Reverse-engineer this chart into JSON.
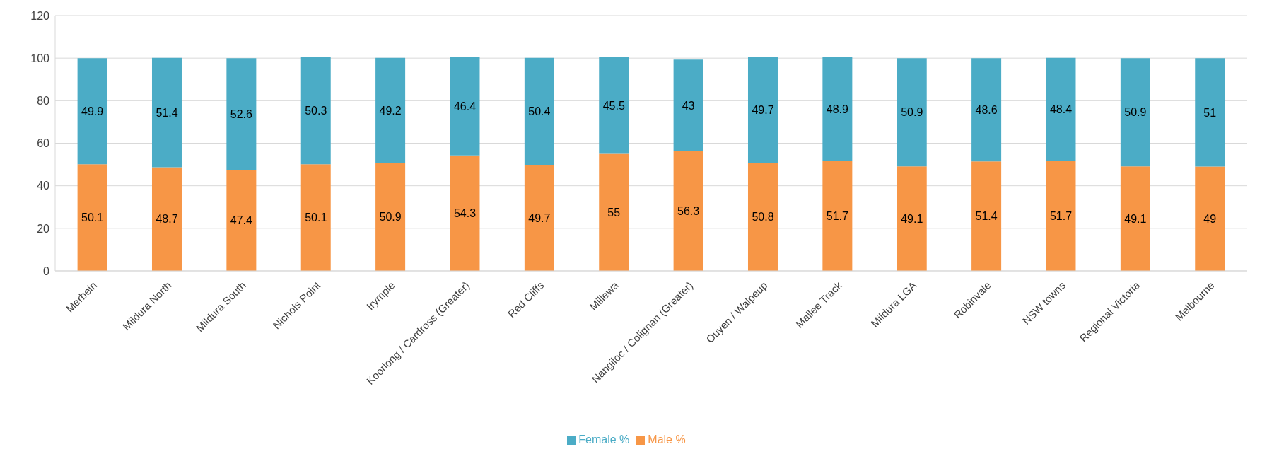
{
  "chart_data": {
    "type": "bar",
    "stacked": true,
    "categories": [
      "Merbein",
      "Mildura North",
      "Mildura South",
      "Nichols Point",
      "Irymple",
      "Koorlong / Cardross (Greater)",
      "Red Cliffs",
      "Millewa",
      "Nangiloc / Colignan (Greater)",
      "Ouyen / Walpeup",
      "Mallee Track",
      "Mildura LGA",
      "Robinvale",
      "NSW towns",
      "Regional Victoria",
      "Melbourne"
    ],
    "series": [
      {
        "name": "Male %",
        "color": "#f79646",
        "values": [
          50.1,
          48.7,
          47.4,
          50.1,
          50.9,
          54.3,
          49.7,
          55,
          56.3,
          50.8,
          51.7,
          49.1,
          51.4,
          51.7,
          49.1,
          49
        ]
      },
      {
        "name": "Female %",
        "color": "#4bacc6",
        "values": [
          49.9,
          51.4,
          52.6,
          50.3,
          49.2,
          46.4,
          50.4,
          45.5,
          43,
          49.7,
          48.9,
          50.9,
          48.6,
          48.4,
          50.9,
          51
        ]
      }
    ],
    "ylim": [
      0,
      120
    ],
    "yticks": [
      0,
      20,
      40,
      60,
      80,
      100,
      120
    ],
    "grid": "y",
    "legend": "bottom",
    "data_labels": true
  }
}
